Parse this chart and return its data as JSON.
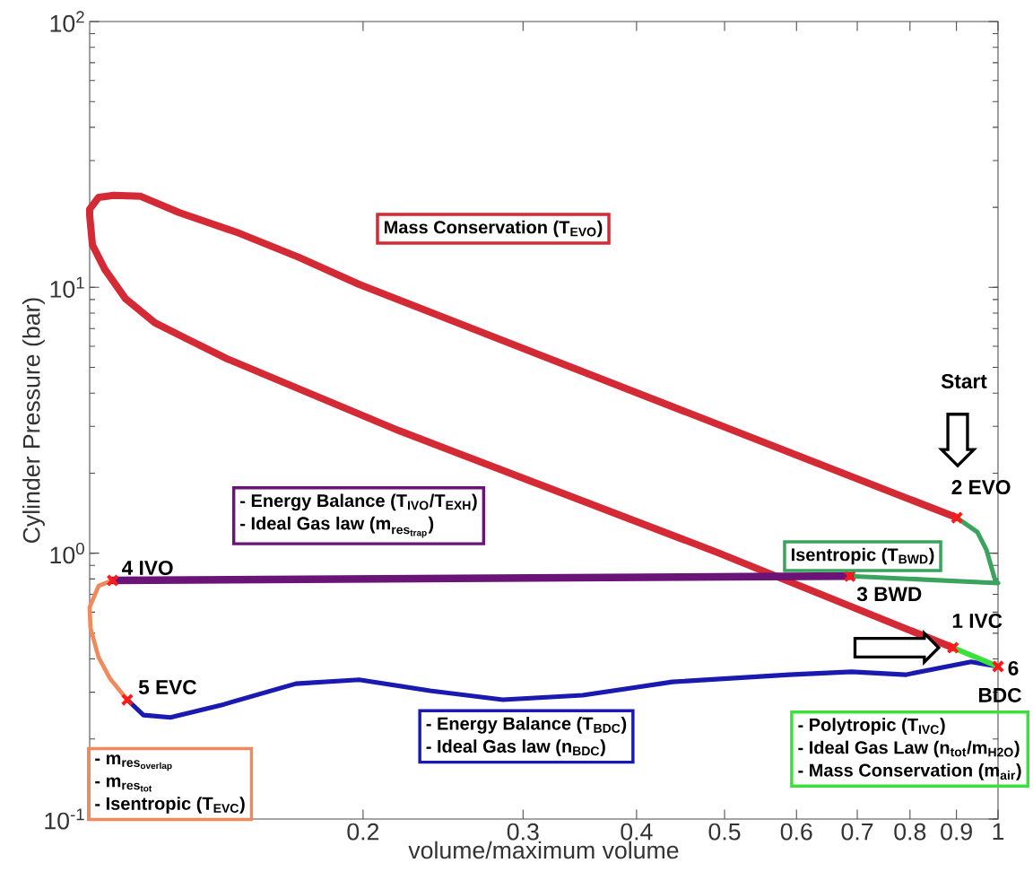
{
  "chart_data": {
    "type": "line",
    "xlabel": "volume/maximum volume",
    "ylabel": "Cylinder Pressure (bar)",
    "log": "xy",
    "xlim": [
      0.1,
      1
    ],
    "ylim": [
      0.1,
      100
    ],
    "xticks": [
      0.2,
      0.3,
      0.4,
      0.5,
      0.6,
      0.7,
      0.8,
      0.9,
      1
    ],
    "yticks": [
      {
        "value": 0.1,
        "label": "10$^{-1}$"
      },
      {
        "value": 1,
        "label": "10$^{0}$"
      },
      {
        "value": 10,
        "label": "10$^{1}$"
      },
      {
        "value": 100,
        "label": "10$^{2}$"
      }
    ],
    "series": [
      {
        "color": "#d42a35",
        "x": [
          0.892,
          0.491,
          0.219,
          0.1416,
          0.1275,
          0.118,
          0.1095,
          0.1039,
          0.1007,
          0.1,
          0.1,
          0.1023,
          0.1063,
          0.1138,
          0.1255,
          0.146,
          0.17,
          0.198,
          0.901
        ],
        "values": [
          0.441,
          1.006,
          2.89,
          5.39,
          6.44,
          7.35,
          9.07,
          11.7,
          14.45,
          18.7,
          19.7,
          21.8,
          22.2,
          22.0,
          19.1,
          16.0,
          12.97,
          10.26,
          1.36
        ]
      },
      {
        "color": "#3aa35e",
        "x": [
          0.901,
          0.949,
          0.971,
          0.993,
          1.0,
          0.687
        ],
        "values": [
          1.36,
          1.2,
          1.03,
          0.79,
          0.772,
          0.82
        ]
      },
      {
        "color": "#6b1478",
        "x": [
          0.687,
          0.106
        ],
        "values": [
          0.82,
          0.79
        ]
      },
      {
        "color": "#f08a5d",
        "x": [
          0.106,
          0.1023,
          0.1,
          0.1002,
          0.1023,
          0.1054,
          0.11
        ],
        "values": [
          0.79,
          0.754,
          0.626,
          0.524,
          0.405,
          0.336,
          0.281
        ]
      },
      {
        "color": "#1a1ab0",
        "x": [
          0.11,
          0.1146,
          0.1227,
          0.1406,
          0.1687,
          0.198,
          0.237,
          0.285,
          0.349,
          0.438,
          0.589,
          0.69,
          0.791,
          0.934,
          1.0
        ],
        "values": [
          0.281,
          0.246,
          0.241,
          0.27,
          0.323,
          0.334,
          0.304,
          0.281,
          0.292,
          0.328,
          0.349,
          0.358,
          0.349,
          0.39,
          0.375
        ]
      },
      {
        "color": "#3ce03c",
        "x": [
          0.892,
          1.0
        ],
        "values": [
          0.441,
          0.375
        ]
      },
      {
        "type": "scatter",
        "marker": "cross",
        "color": "#ff1a1a",
        "x": [
          0.892,
          0.901,
          0.687,
          0.106,
          0.11,
          1.0
        ],
        "values": [
          0.441,
          1.36,
          0.82,
          0.79,
          0.281,
          0.375
        ]
      }
    ],
    "annotations": [
      "Mass Conservation (T$_{EVO}$)",
      "- Energy Balance (T$_{IVO}$/T$_{EXH}$)",
      "\\text{- Ideal Gas law (m}_{\\text{res}_{\\text{trap}}}\\text{)}",
      "Isentropic (T$_{BWD}$)",
      "\\text{- m}_{\\text{res}_{\\text{overlap}}}",
      "\\text{- m}_{\\text{res}_{\\text{tot}}}",
      "- Isentropic (T$_{EVC}$)",
      "- Energy Balance (T$_{BDC}$)",
      "- Ideal Gas law (n$_{BDC}$)",
      "- Polytropic (T$_{IVC}$)",
      "- Ideal Gas Law (n$_{tot}$/m$_{H2O}$)",
      "- Mass Conservation (m$_{air}$)",
      "Start",
      {
        "text": "2 EVO",
        "x": 0.901,
        "y": 1.36
      },
      {
        "text": "3 BWD",
        "x": 0.687,
        "y": 0.82
      },
      {
        "text": "1 IVC",
        "x": 0.892,
        "y": 0.441
      },
      {
        "text": "6",
        "x": 1.0,
        "y": 0.375
      },
      {
        "text": "BDC",
        "x": 1.0,
        "y": 0.375
      },
      {
        "text": "4 IVO",
        "x": 0.106,
        "y": 0.79
      },
      {
        "text": "5 EVC",
        "x": 0.11,
        "y": 0.281
      }
    ]
  }
}
